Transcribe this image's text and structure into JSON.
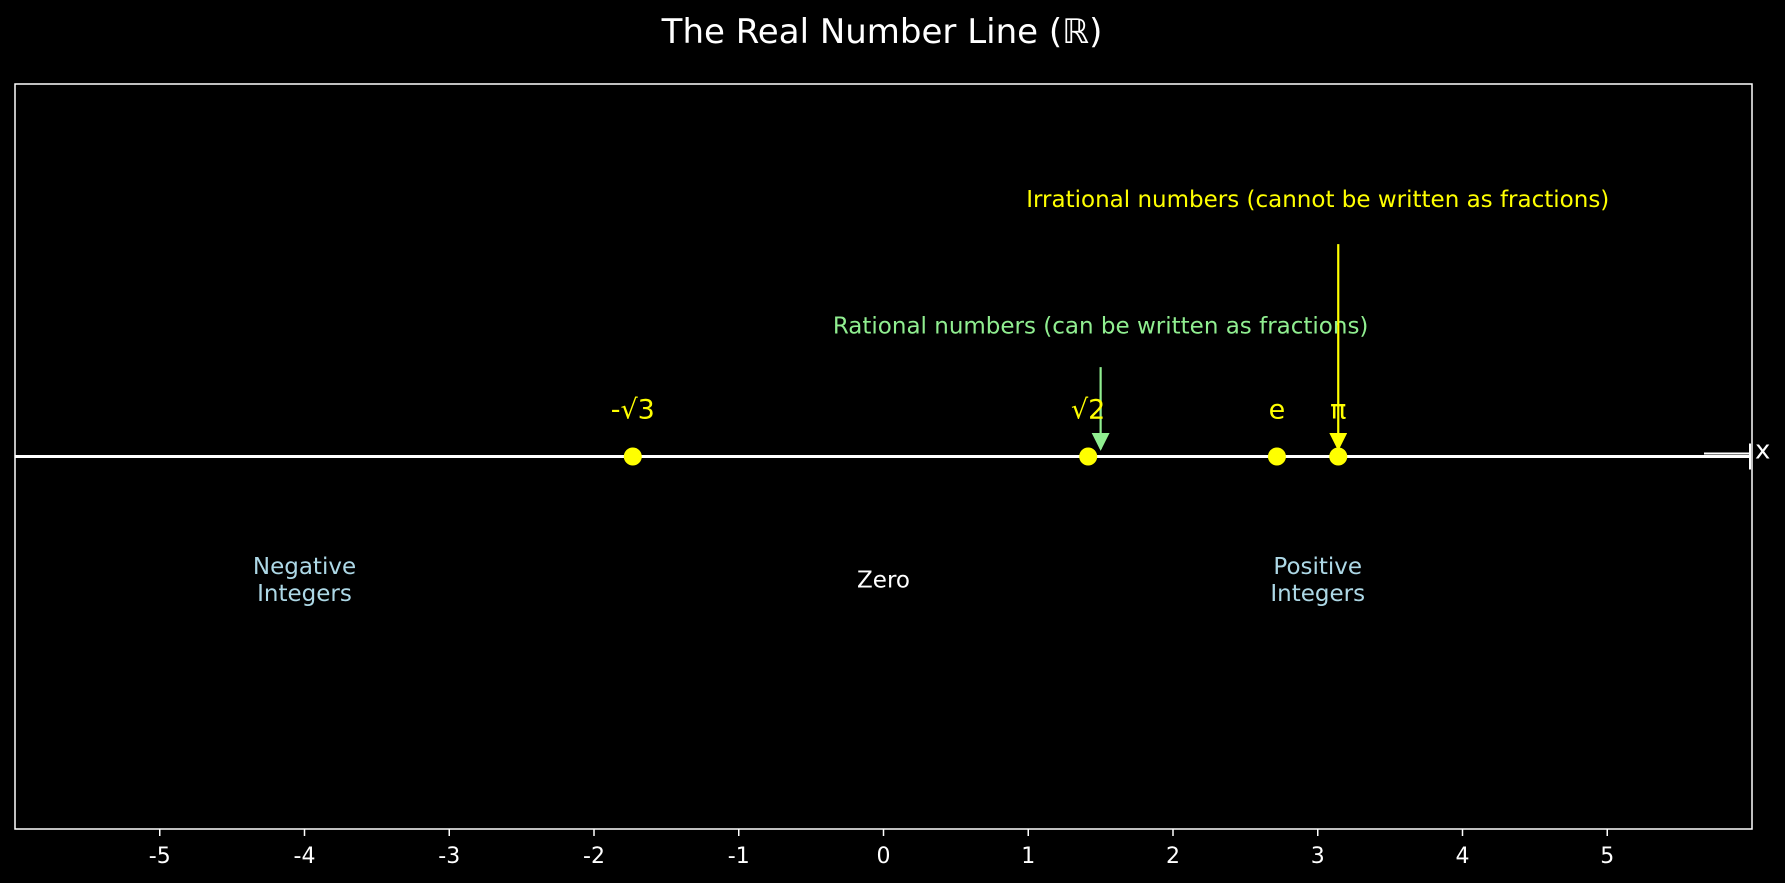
{
  "chart_data": {
    "type": "scatter",
    "title": "The Real Number Line (ℝ)",
    "xlabel": "",
    "ylabel": "",
    "xlim": [
      -6,
      6
    ],
    "ylim": [
      -1.0,
      1.0
    ],
    "x_ticks": [
      -5,
      -4,
      -3,
      -2,
      -1,
      0,
      1,
      2,
      3,
      4,
      5
    ],
    "x_tick_labels": [
      "-5",
      "-4",
      "-3",
      "-2",
      "-1",
      "0",
      "1",
      "2",
      "3",
      "4",
      "5"
    ],
    "grid": false,
    "axis_end_label": "x",
    "points": [
      {
        "label": "-√3",
        "x": -1.732,
        "y": 0
      },
      {
        "label": "√2",
        "x": 1.414,
        "y": 0
      },
      {
        "label": "e",
        "x": 2.718,
        "y": 0
      },
      {
        "label": "π",
        "x": 3.1416,
        "y": 0
      }
    ],
    "annotations": [
      {
        "text": "Rational numbers (can be written as fractions)",
        "text_x": 1.5,
        "text_y": 0.33,
        "arrow_from": [
          1.5,
          0.24
        ],
        "arrow_to": [
          1.5,
          0.02
        ],
        "color": "#90ee90"
      },
      {
        "text": "Irrational numbers (cannot be written as fractions)",
        "text_x": 3.0,
        "text_y": 0.67,
        "arrow_from": [
          3.1416,
          0.57
        ],
        "arrow_to": [
          3.1416,
          0.02
        ],
        "color": "#ffff00"
      }
    ],
    "region_labels": [
      {
        "lines": [
          "Negative",
          "Integers"
        ],
        "x": -4,
        "y": -0.33,
        "color": "#add8e6"
      },
      {
        "lines": [
          "Zero"
        ],
        "x": 0,
        "y": -0.33,
        "color": "#ffffff"
      },
      {
        "lines": [
          "Positive",
          "Integers"
        ],
        "x": 3,
        "y": -0.33,
        "color": "#add8e6"
      }
    ],
    "colors": {
      "background": "#000000",
      "axis_line": "#ffffff",
      "point": "#ffff00",
      "point_label": "#ffff00",
      "frame": "#ffffff"
    }
  }
}
